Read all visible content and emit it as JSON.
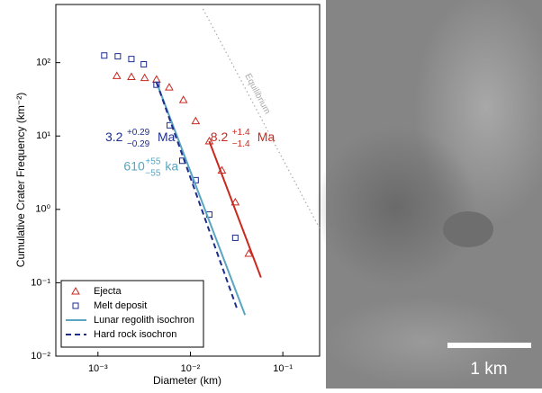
{
  "chart_data": {
    "type": "scatter",
    "xlabel": "Diameter (km)",
    "ylabel": "Cumulative Crater Frequency (km⁻²)",
    "log_x": true,
    "log_y": true,
    "xlim": [
      0.00035,
      0.25
    ],
    "ylim": [
      0.01,
      620
    ],
    "xticks": [
      {
        "value": 0.001,
        "label": "10⁻³"
      },
      {
        "value": 0.01,
        "label": "10⁻²"
      },
      {
        "value": 0.1,
        "label": "10⁻¹"
      }
    ],
    "yticks": [
      {
        "value": 0.01,
        "label": "10⁻²"
      },
      {
        "value": 0.1,
        "label": "10⁻¹"
      },
      {
        "value": 1,
        "label": "10⁰"
      },
      {
        "value": 10,
        "label": "10¹"
      },
      {
        "value": 100,
        "label": "10²"
      }
    ],
    "legend": "lower left",
    "series": [
      {
        "name": "Ejecta",
        "color": "#c8281e",
        "marker": "triangle",
        "x": [
          0.0016,
          0.0023,
          0.0032,
          0.0043,
          0.0059,
          0.0084,
          0.0114,
          0.016,
          0.0219,
          0.0306,
          0.0428
        ],
        "values": [
          66,
          64,
          62,
          59,
          46,
          31,
          16,
          8.5,
          3.4,
          1.25,
          0.25
        ]
      },
      {
        "name": "Melt deposit",
        "color": "#1e2d8c",
        "marker": "square",
        "x": [
          0.00117,
          0.00164,
          0.0023,
          0.00313,
          0.0043,
          0.00598,
          0.00818,
          0.0114,
          0.016,
          0.0306
        ],
        "values": [
          125,
          122,
          112,
          95,
          50,
          14,
          4.6,
          2.5,
          0.85,
          0.41
        ]
      },
      {
        "name": "Lunar regolith isochron",
        "color": "#5aa6c0",
        "style": "solid",
        "x": [
          0.0043,
          0.039
        ],
        "values": [
          54,
          0.0364
        ]
      },
      {
        "name": "Hard rock isochron",
        "color": "#1e2d8c",
        "style": "dashed",
        "x": [
          0.0043,
          0.032
        ],
        "values": [
          54,
          0.044
        ]
      }
    ],
    "reference_lines": [
      {
        "color": "#c8281e",
        "style": "solid",
        "x": [
          0.016,
          0.058
        ],
        "values": [
          8.5,
          0.118
        ]
      },
      {
        "name": "Equilibrium",
        "color": "#aaaaaa",
        "style": "dotted",
        "x": [
          0.0137,
          0.25
        ],
        "values": [
          540,
          0.55
        ]
      }
    ],
    "annotations": [
      {
        "text": "3.2",
        "sup": "+0.29",
        "sub": "−0.29",
        "unit": "Ma",
        "color": "#1e2d8c",
        "x": 0.0012,
        "y": 9.5
      },
      {
        "text": "610",
        "sup": "+55",
        "sub": "−55",
        "unit": "ka",
        "color": "#5aa6c0",
        "x": 0.0019,
        "y": 3.8
      },
      {
        "text": "8.2",
        "sup": "+1.4",
        "sub": "−1.4",
        "unit": "Ma",
        "color": "#c8281e",
        "x": 0.0165,
        "y": 9.5
      }
    ]
  },
  "image": {
    "scale_label": "1 km"
  }
}
